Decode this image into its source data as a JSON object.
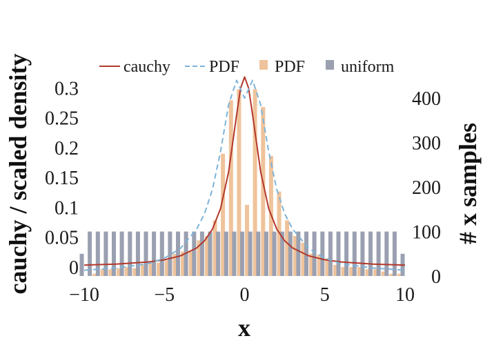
{
  "chart_data": {
    "type": "bar",
    "xlabel": "x",
    "ylabel_left": "cauchy / scaled density",
    "ylabel_right": "# x samples",
    "xlim": [
      -10,
      10
    ],
    "ylim_left": [
      -0.015,
      0.32
    ],
    "ylim_right": [
      0,
      450
    ],
    "x_ticks": [
      -10,
      -5,
      0,
      5,
      10
    ],
    "x_tick_labels": [
      "−10",
      "−5",
      "0",
      "5",
      "10"
    ],
    "y_left_ticks": [
      0,
      0.05,
      0.1,
      0.15,
      0.2,
      0.25,
      0.3
    ],
    "y_left_tick_labels": [
      "0",
      "0.05",
      "0.1",
      "0.15",
      "0.2",
      "0.25",
      "0.3"
    ],
    "y_right_ticks": [
      0,
      100,
      200,
      300,
      400
    ],
    "y_right_tick_labels": [
      "0",
      "100",
      "200",
      "300",
      "400"
    ],
    "legend": {
      "placement": "top",
      "entries": [
        {
          "label": "cauchy",
          "style": "line",
          "color": "#b2382b"
        },
        {
          "label": "PDF",
          "style": "dashed-line",
          "color": "#7db3d8"
        },
        {
          "label": "PDF",
          "style": "bar",
          "color": "#efc39b"
        },
        {
          "label": "uniform",
          "style": "bar",
          "color": "#9aa0b0"
        }
      ]
    },
    "series": [
      {
        "name": "cauchy",
        "type": "line",
        "axis": "left",
        "color": "#b2382b",
        "x": [
          -10,
          -8,
          -6,
          -5,
          -4,
          -3,
          -2.5,
          -2,
          -1.5,
          -1,
          -0.5,
          -0.25,
          0,
          0.25,
          0.5,
          1,
          1.5,
          2,
          2.5,
          3,
          4,
          5,
          6,
          8,
          10
        ],
        "y": [
          0.0032,
          0.0049,
          0.0086,
          0.0122,
          0.0187,
          0.0318,
          0.0439,
          0.0637,
          0.0979,
          0.1592,
          0.2546,
          0.2996,
          0.3183,
          0.2996,
          0.2546,
          0.1592,
          0.0979,
          0.0637,
          0.0439,
          0.0318,
          0.0187,
          0.0122,
          0.0086,
          0.0049,
          0.0032
        ]
      },
      {
        "name": "PDF",
        "type": "dashed-line",
        "axis": "right",
        "color": "#7db3d8",
        "x": [
          -10,
          -8,
          -6,
          -5,
          -4,
          -3,
          -2.5,
          -2,
          -1.5,
          -1,
          -0.5,
          -0.25,
          0,
          0.25,
          0.5,
          1,
          1.5,
          2,
          2.5,
          3,
          4,
          5,
          6,
          8,
          10
        ],
        "y": [
          13,
          18,
          28,
          40,
          62,
          105,
          140,
          195,
          280,
          385,
          440,
          420,
          400,
          420,
          440,
          385,
          280,
          195,
          140,
          105,
          62,
          40,
          28,
          18,
          13
        ]
      },
      {
        "name": "PDF",
        "type": "bar",
        "axis": "right",
        "color": "#efc39b",
        "x": [
          -9.5,
          -9,
          -8.5,
          -8,
          -7.5,
          -7,
          -6.5,
          -6,
          -5.5,
          -5,
          -4.5,
          -4,
          -3.5,
          -3,
          -2.5,
          -2,
          -1.5,
          -1,
          -0.5,
          0,
          0.5,
          1,
          1.5,
          2,
          2.5,
          3,
          3.5,
          4,
          4.5,
          5,
          5.5,
          6,
          6.5,
          7,
          7.5,
          8,
          8.5,
          9,
          9.5
        ],
        "values": [
          5,
          15,
          15,
          17,
          20,
          17,
          25,
          30,
          30,
          35,
          50,
          55,
          55,
          80,
          90,
          125,
          275,
          395,
          420,
          160,
          420,
          380,
          270,
          190,
          125,
          90,
          75,
          50,
          48,
          40,
          25,
          20,
          20,
          20,
          15,
          15,
          10,
          5,
          5
        ]
      },
      {
        "name": "uniform",
        "type": "bar",
        "axis": "right",
        "color": "#9aa0b0",
        "x": [
          -10,
          -9.5,
          -9,
          -8.5,
          -8,
          -7.5,
          -7,
          -6.5,
          -6,
          -5.5,
          -5,
          -4.5,
          -4,
          -3.5,
          -3,
          -2.5,
          -2,
          -1.5,
          -1,
          -0.5,
          0,
          0.5,
          1,
          1.5,
          2,
          2.5,
          3,
          3.5,
          4,
          4.5,
          5,
          5.5,
          6,
          6.5,
          7,
          7.5,
          8,
          8.5,
          9,
          9.5,
          10
        ],
        "values": [
          50,
          100,
          100,
          100,
          100,
          100,
          100,
          100,
          100,
          100,
          100,
          100,
          100,
          100,
          100,
          100,
          100,
          100,
          100,
          100,
          100,
          100,
          100,
          100,
          100,
          100,
          100,
          100,
          100,
          100,
          100,
          100,
          100,
          100,
          100,
          100,
          100,
          100,
          100,
          100,
          50
        ]
      }
    ]
  }
}
